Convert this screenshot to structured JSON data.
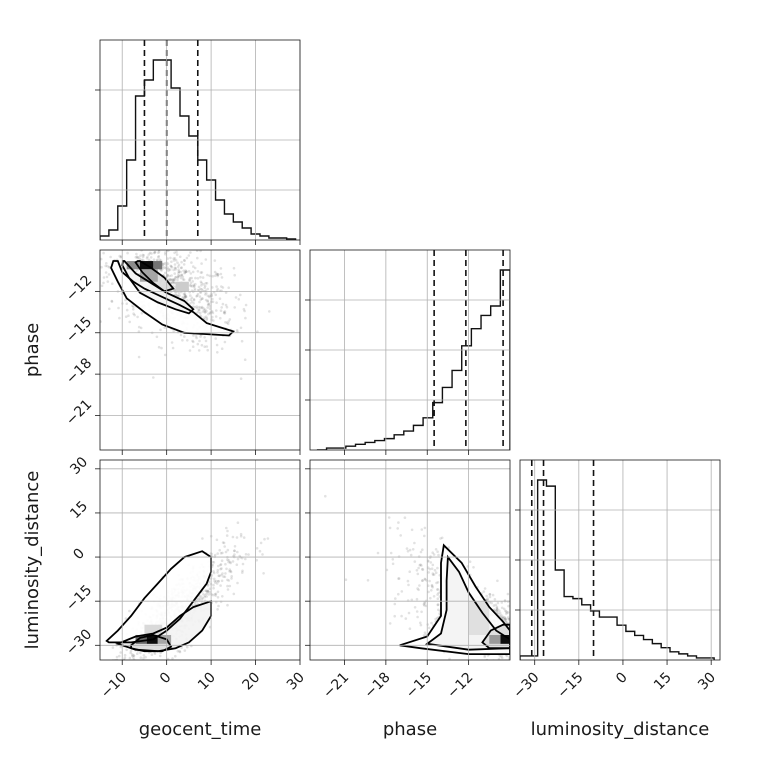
{
  "chart_data": {
    "type": "corner",
    "parameters": [
      "geocent_time",
      "phase",
      "luminosity_distance"
    ],
    "axis_labels": {
      "geocent_time": "geocent_time",
      "phase": "phase",
      "luminosity_distance": "luminosity_distance"
    },
    "ranges": {
      "geocent_time": [
        -15,
        30
      ],
      "phase": [
        -23.5,
        -9
      ],
      "luminosity_distance": [
        -35,
        33
      ]
    },
    "ticks": {
      "geocent_time": [
        -10,
        0,
        10,
        20,
        30
      ],
      "phase": [
        -21,
        -18,
        -15,
        -12
      ],
      "luminosity_distance": [
        -30,
        -15,
        0,
        15,
        30
      ]
    },
    "tick_labels": {
      "geocent_time": [
        "−10",
        "0",
        "10",
        "20",
        "30"
      ],
      "phase": [
        "−21",
        "−18",
        "−15",
        "−12"
      ],
      "luminosity_distance": [
        "−30",
        "−15",
        "0",
        "15",
        "30"
      ]
    },
    "quantiles": {
      "geocent_time": [
        -5,
        0,
        7
      ],
      "phase": [
        -14.5,
        -12.2,
        -9.5
      ],
      "luminosity_distance": [
        -31,
        -27,
        -10
      ]
    },
    "histograms": {
      "geocent_time": {
        "bin_edges": [
          -15,
          -13,
          -11,
          -9,
          -7,
          -5,
          -3,
          -1,
          1,
          3,
          5,
          7,
          9,
          11,
          13,
          15,
          17,
          19,
          21,
          23,
          25,
          27,
          29
        ],
        "counts": [
          0.02,
          0.05,
          0.17,
          0.4,
          0.72,
          0.8,
          0.9,
          0.9,
          0.76,
          0.62,
          0.52,
          0.4,
          0.3,
          0.2,
          0.13,
          0.09,
          0.06,
          0.03,
          0.02,
          0.01,
          0.01,
          0.005
        ]
      },
      "phase": {
        "bin_edges": [
          -23,
          -22.3,
          -21.6,
          -20.9,
          -20.2,
          -19.5,
          -18.8,
          -18.1,
          -17.4,
          -16.7,
          -16,
          -15.3,
          -14.6,
          -13.9,
          -13.2,
          -12.5,
          -11.8,
          -11.1,
          -10.4,
          -9.7,
          -9
        ],
        "counts": [
          0.0,
          0.01,
          0.01,
          0.02,
          0.03,
          0.04,
          0.05,
          0.06,
          0.08,
          0.1,
          0.13,
          0.17,
          0.25,
          0.33,
          0.42,
          0.55,
          0.64,
          0.71,
          0.76,
          0.95
        ]
      },
      "luminosity_distance": {
        "bin_edges": [
          -35,
          -32,
          -29,
          -26,
          -23,
          -20,
          -17,
          -14,
          -11,
          -8,
          -5,
          -2,
          1,
          4,
          7,
          10,
          13,
          16,
          19,
          22,
          25,
          28,
          31
        ],
        "counts": [
          0.02,
          0.02,
          0.88,
          0.85,
          0.44,
          0.31,
          0.3,
          0.27,
          0.24,
          0.21,
          0.21,
          0.17,
          0.14,
          0.12,
          0.1,
          0.08,
          0.06,
          0.04,
          0.03,
          0.02,
          0.01,
          0.01
        ]
      }
    },
    "contours": {
      "geocent_time_vs_phase": [
        [
          [
            -11,
            -9.8
          ],
          [
            -10,
            -10.6
          ],
          [
            -7.5,
            -11.3
          ],
          [
            -5,
            -11.8
          ],
          [
            -1,
            -12.4
          ],
          [
            3,
            -13
          ],
          [
            6,
            -13.5
          ],
          [
            9,
            -14.3
          ],
          [
            13,
            -14.7
          ],
          [
            15,
            -14.9
          ],
          [
            14,
            -15.2
          ],
          [
            9,
            -15.1
          ],
          [
            4,
            -15
          ],
          [
            -1,
            -14.4
          ],
          [
            -5,
            -13.5
          ],
          [
            -9,
            -12.5
          ],
          [
            -11,
            -11.3
          ],
          [
            -12.5,
            -10.3
          ],
          [
            -12,
            -9.8
          ]
        ],
        [
          [
            -9.5,
            -9.8
          ],
          [
            -7,
            -10.7
          ],
          [
            -4,
            -11.3
          ],
          [
            0,
            -12.1
          ],
          [
            4,
            -12.7
          ],
          [
            6,
            -13.3
          ],
          [
            5,
            -13.6
          ],
          [
            2,
            -13.3
          ],
          [
            -2,
            -12.8
          ],
          [
            -6,
            -12.1
          ],
          [
            -8.5,
            -11
          ],
          [
            -10,
            -10.1
          ],
          [
            -9.8,
            -9.8
          ]
        ],
        [
          [
            -6,
            -9.8
          ],
          [
            -3.5,
            -10.3
          ],
          [
            -0.5,
            -11
          ],
          [
            1.5,
            -11.8
          ],
          [
            -0.5,
            -12
          ],
          [
            -3,
            -11.4
          ],
          [
            -5.5,
            -10.6
          ],
          [
            -7,
            -9.9
          ],
          [
            -6.5,
            -9.8
          ]
        ]
      ],
      "geocent_time_vs_luminosity_distance": [
        [
          [
            -13,
            -29
          ],
          [
            -8,
            -29
          ],
          [
            -3,
            -28
          ],
          [
            0,
            -25
          ],
          [
            3,
            -21
          ],
          [
            5,
            -17
          ],
          [
            7,
            -13
          ],
          [
            9,
            -9
          ],
          [
            10,
            -5
          ],
          [
            10,
            0
          ],
          [
            8,
            2
          ],
          [
            4,
            0
          ],
          [
            1,
            -4
          ],
          [
            -2,
            -9
          ],
          [
            -5,
            -14
          ],
          [
            -8,
            -20
          ],
          [
            -11,
            -25
          ],
          [
            -13.5,
            -28.5
          ],
          [
            -13,
            -29
          ]
        ],
        [
          [
            -11,
            -29.5
          ],
          [
            -7,
            -31.5
          ],
          [
            -2,
            -32
          ],
          [
            2,
            -31
          ],
          [
            5,
            -29
          ],
          [
            8,
            -25
          ],
          [
            10,
            -20
          ],
          [
            10,
            -15
          ],
          [
            6,
            -17
          ],
          [
            3,
            -20
          ],
          [
            0,
            -24
          ],
          [
            -3,
            -26
          ],
          [
            -7,
            -27
          ],
          [
            -11,
            -29.5
          ]
        ],
        [
          [
            -8,
            -31
          ],
          [
            -5,
            -32
          ],
          [
            -1,
            -32
          ],
          [
            1,
            -30.5
          ],
          [
            0,
            -28
          ],
          [
            -3,
            -26.5
          ],
          [
            -6,
            -27.5
          ],
          [
            -8,
            -30
          ],
          [
            -8,
            -31
          ]
        ]
      ],
      "phase_vs_luminosity_distance": [
        [
          [
            -13.8,
            4
          ],
          [
            -12.5,
            -2
          ],
          [
            -11.5,
            -10
          ],
          [
            -10.5,
            -17
          ],
          [
            -9.5,
            -22
          ],
          [
            -9,
            -25
          ],
          [
            -9,
            -33
          ],
          [
            -12,
            -33
          ],
          [
            -15.5,
            -31
          ],
          [
            -17,
            -30
          ],
          [
            -15,
            -27
          ],
          [
            -14,
            -20
          ],
          [
            -14,
            -10
          ],
          [
            -14,
            -2
          ],
          [
            -13.8,
            4
          ]
        ],
        [
          [
            -13.5,
            0
          ],
          [
            -12.7,
            -5
          ],
          [
            -12,
            -12
          ],
          [
            -11,
            -19
          ],
          [
            -10,
            -25
          ],
          [
            -9,
            -28
          ],
          [
            -9,
            -31
          ],
          [
            -12,
            -31.5
          ],
          [
            -15,
            -29.5
          ],
          [
            -14,
            -26
          ],
          [
            -13.6,
            -18
          ],
          [
            -13.6,
            -8
          ],
          [
            -13.5,
            0
          ]
        ],
        [
          [
            -10.4,
            -25
          ],
          [
            -9.5,
            -23
          ],
          [
            -9,
            -23
          ],
          [
            -9,
            -31
          ],
          [
            -10.5,
            -31
          ],
          [
            -11,
            -29
          ],
          [
            -10.4,
            -25
          ]
        ]
      ]
    },
    "density_blocks": {
      "geocent_time_vs_phase": [
        {
          "x": [
            -6,
            -3
          ],
          "y": [
            -9.8,
            -10.4
          ],
          "level": 0.95
        },
        {
          "x": [
            -3,
            -1
          ],
          "y": [
            -9.8,
            -10.4
          ],
          "level": 0.55
        },
        {
          "x": [
            -9,
            -6
          ],
          "y": [
            -9.8,
            -10.4
          ],
          "level": 0.45
        },
        {
          "x": [
            -6,
            -2
          ],
          "y": [
            -10.4,
            -11.3
          ],
          "level": 0.35
        },
        {
          "x": [
            2,
            5
          ],
          "y": [
            -11.3,
            -12
          ],
          "level": 0.2
        }
      ],
      "geocent_time_vs_luminosity_distance": [
        {
          "x": [
            -4.5,
            -2
          ],
          "y": [
            -26.5,
            -29.5
          ],
          "level": 0.95
        },
        {
          "x": [
            -7,
            -4.5
          ],
          "y": [
            -26.5,
            -29.5
          ],
          "level": 0.6
        },
        {
          "x": [
            -2,
            1
          ],
          "y": [
            -26.5,
            -29.5
          ],
          "level": 0.35
        },
        {
          "x": [
            -5,
            -1
          ],
          "y": [
            -23,
            -26.5
          ],
          "level": 0.15
        }
      ],
      "phase_vs_luminosity_distance": [
        {
          "x": [
            -9.7,
            -9
          ],
          "y": [
            -26.5,
            -29.5
          ],
          "level": 0.95
        },
        {
          "x": [
            -10.5,
            -9.7
          ],
          "y": [
            -26.5,
            -29.5
          ],
          "level": 0.4
        },
        {
          "x": [
            -12,
            -10.5
          ],
          "y": [
            -15,
            -26.5
          ],
          "level": 0.12
        }
      ]
    }
  }
}
